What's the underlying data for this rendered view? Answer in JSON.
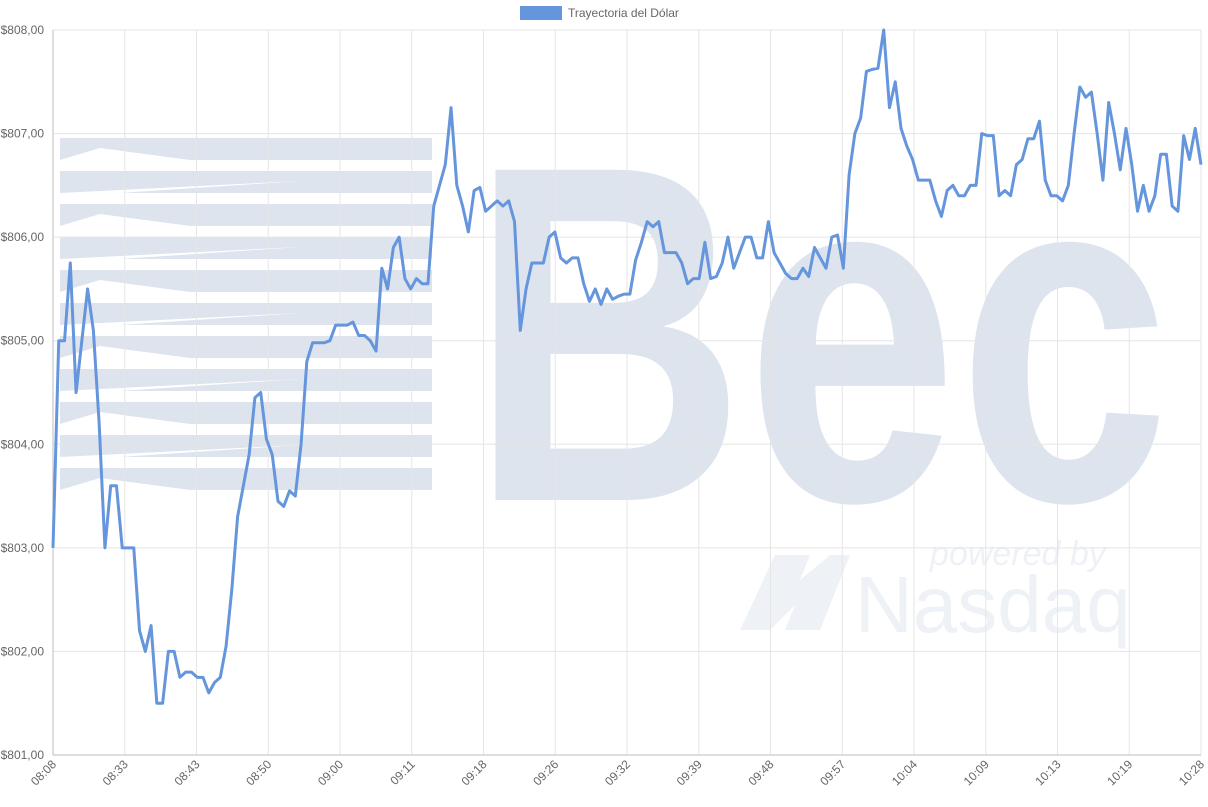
{
  "watermark": {
    "brand": "Bec",
    "tagline_1": "powered by",
    "tagline_2": "Nasdaq",
    "color": "#dde4ee"
  },
  "chart_data": {
    "type": "line",
    "title": "",
    "xlabel": "",
    "ylabel": "",
    "ylim": [
      801,
      808
    ],
    "y_ticks": [
      "$801,00",
      "$802,00",
      "$803,00",
      "$804,00",
      "$805,00",
      "$806,00",
      "$807,00",
      "$808,00"
    ],
    "y_tick_values": [
      801,
      802,
      803,
      804,
      805,
      806,
      807,
      808
    ],
    "x_ticks": [
      "08:08",
      "08:33",
      "08:43",
      "08:50",
      "09:00",
      "09:11",
      "09:18",
      "09:26",
      "09:32",
      "09:39",
      "09:48",
      "09:57",
      "10:04",
      "10:09",
      "10:13",
      "10:19",
      "10:28"
    ],
    "grid": true,
    "legend_position": "top",
    "series": [
      {
        "name": "Trayectoria del Dólar",
        "color": "#6595dc",
        "values": [
          803.0,
          805.0,
          805.0,
          805.75,
          804.5,
          805.0,
          805.5,
          805.1,
          804.2,
          803.0,
          803.6,
          803.6,
          803.0,
          803.0,
          803.0,
          802.2,
          802.0,
          802.25,
          801.5,
          801.5,
          802.0,
          802.0,
          801.75,
          801.8,
          801.8,
          801.75,
          801.75,
          801.6,
          801.7,
          801.75,
          802.05,
          802.6,
          803.3,
          803.6,
          803.9,
          804.45,
          804.5,
          804.05,
          803.9,
          803.45,
          803.4,
          803.55,
          803.5,
          804.0,
          804.8,
          804.98,
          804.98,
          804.98,
          805.0,
          805.15,
          805.15,
          805.15,
          805.18,
          805.05,
          805.05,
          805.0,
          804.9,
          805.7,
          805.5,
          805.9,
          806.0,
          805.6,
          805.5,
          805.6,
          805.55,
          805.55,
          806.3,
          806.5,
          806.7,
          807.25,
          806.5,
          806.3,
          806.05,
          806.45,
          806.48,
          806.25,
          806.3,
          806.35,
          806.3,
          806.35,
          806.15,
          805.1,
          805.5,
          805.75,
          805.75,
          805.75,
          806.0,
          806.05,
          805.8,
          805.75,
          805.8,
          805.8,
          805.55,
          805.38,
          805.5,
          805.35,
          805.5,
          805.4,
          805.43,
          805.45,
          805.45,
          805.78,
          805.95,
          806.15,
          806.1,
          806.15,
          805.85,
          805.85,
          805.85,
          805.75,
          805.55,
          805.6,
          805.6,
          805.95,
          805.6,
          805.62,
          805.75,
          806.0,
          805.7,
          805.85,
          806.0,
          806.0,
          805.8,
          805.8,
          806.15,
          805.85,
          805.75,
          805.65,
          805.6,
          805.6,
          805.7,
          805.62,
          805.9,
          805.8,
          805.7,
          806.0,
          806.02,
          805.7,
          806.6,
          807.0,
          807.15,
          807.6,
          807.62,
          807.63,
          808.0,
          807.25,
          807.5,
          807.05,
          806.88,
          806.75,
          806.55,
          806.55,
          806.55,
          806.35,
          806.2,
          806.45,
          806.5,
          806.4,
          806.4,
          806.5,
          806.5,
          807.0,
          806.98,
          806.98,
          806.4,
          806.45,
          806.4,
          806.7,
          806.75,
          806.95,
          806.95,
          807.12,
          806.55,
          806.4,
          806.4,
          806.35,
          806.5,
          807.0,
          807.45,
          807.35,
          807.4,
          807.0,
          806.55,
          807.3,
          807.0,
          806.65,
          807.05,
          806.7,
          806.25,
          806.5,
          806.25,
          806.4,
          806.8,
          806.8,
          806.3,
          806.25,
          806.98,
          806.75,
          807.05,
          806.7
        ]
      }
    ]
  }
}
